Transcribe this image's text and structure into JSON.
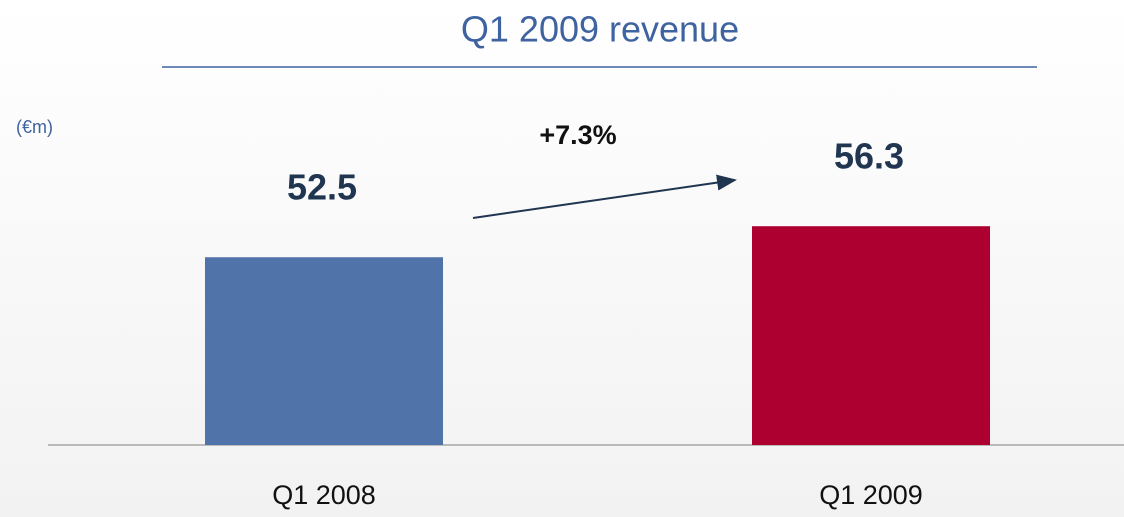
{
  "chart_data": {
    "type": "bar",
    "title": "Q1 2009 revenue",
    "unit_label": "(€m)",
    "categories": [
      "Q1 2008",
      "Q1 2009"
    ],
    "values": [
      52.5,
      56.3
    ],
    "colors": [
      "#5073aa",
      "#ad0030"
    ],
    "ylim": [
      29.5,
      60
    ],
    "annotation": "+7.3%"
  }
}
